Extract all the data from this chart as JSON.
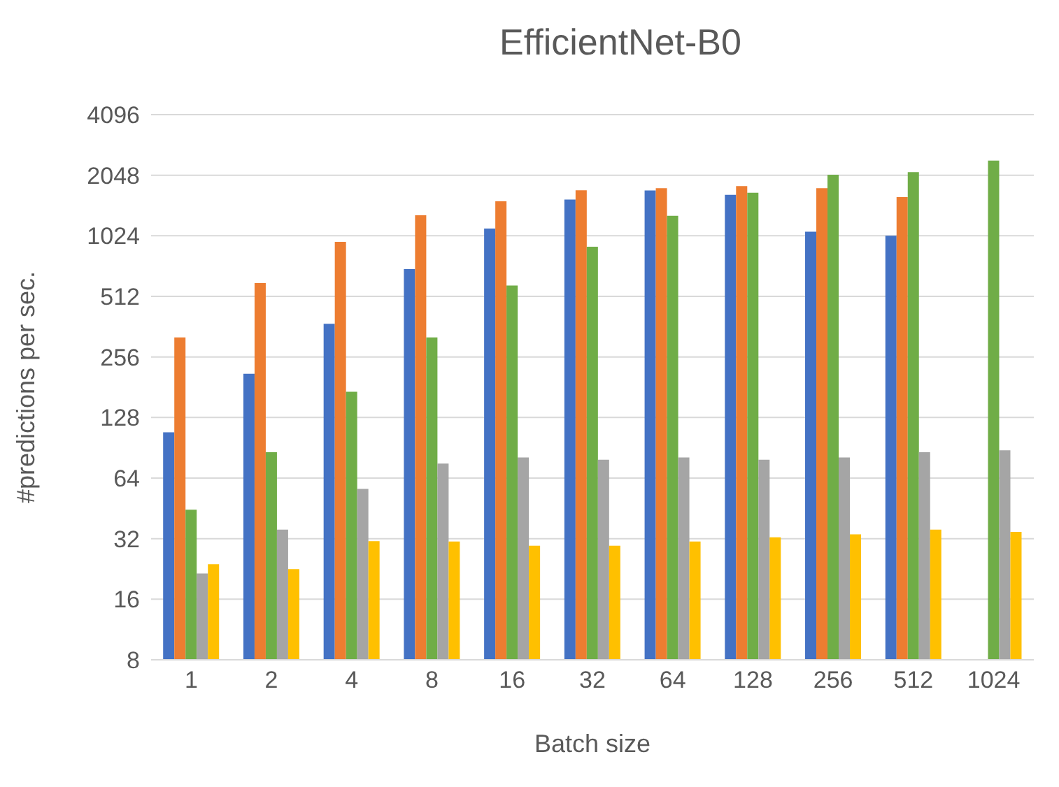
{
  "chart_data": {
    "type": "bar",
    "title": "EfficientNet-B0",
    "xlabel": "Batch size",
    "ylabel": "#predictions per sec.",
    "categories": [
      "1",
      "2",
      "4",
      "8",
      "16",
      "32",
      "64",
      "128",
      "256",
      "512",
      "1024"
    ],
    "series": [
      {
        "color": "#4472c4",
        "values": [
          108,
          211,
          374,
          700,
          1113,
          1550,
          1720,
          1635,
          1073,
          1024,
          null
        ]
      },
      {
        "color": "#ed7d31",
        "values": [
          320,
          596,
          955,
          1296,
          1520,
          1722,
          1764,
          1808,
          1764,
          1593,
          null
        ]
      },
      {
        "color": "#70ad47",
        "values": [
          44.6,
          86,
          172,
          320,
          580,
          904,
          1287,
          1675,
          2060,
          2120,
          2420
        ]
      },
      {
        "color": "#a5a5a5",
        "values": [
          21.5,
          35.5,
          56.5,
          75.6,
          81,
          79,
          81,
          79,
          81,
          86,
          88
        ]
      },
      {
        "color": "#ffc000",
        "values": [
          23.9,
          22.6,
          31.1,
          31,
          29.5,
          29.5,
          31,
          32.5,
          33.6,
          35.5,
          34.6
        ]
      }
    ],
    "log": "y",
    "ylim": [
      8,
      4096
    ],
    "yticks": [
      8,
      16,
      32,
      64,
      128,
      256,
      512,
      1024,
      2048,
      4096
    ],
    "grid": "y",
    "legend": false
  }
}
